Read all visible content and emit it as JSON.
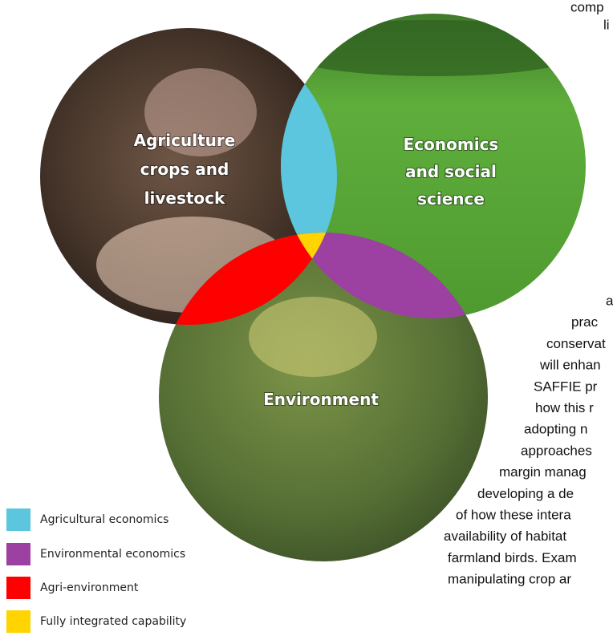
{
  "diagram": {
    "circles": [
      {
        "label": [
          "Agriculture",
          "crops and",
          "livestock"
        ]
      },
      {
        "label": [
          "Economics",
          "and social",
          "science"
        ]
      },
      {
        "label": [
          "Environment"
        ]
      }
    ],
    "legend": [
      "Agricultural economics",
      "Environmental economics",
      "Agri-environment",
      "Fully integrated capability"
    ]
  },
  "text_top": [
    "comp",
    "li"
  ],
  "text_lines": [
    "a",
    "prac",
    "conservat",
    "will enhan",
    "SAFFIE pr",
    "how this r",
    "adopting n",
    "approaches",
    "margin manag",
    "developing a de",
    "of how these intera",
    "availability of habitat",
    "farmland birds.  Exam",
    "manipulating crop ar"
  ]
}
